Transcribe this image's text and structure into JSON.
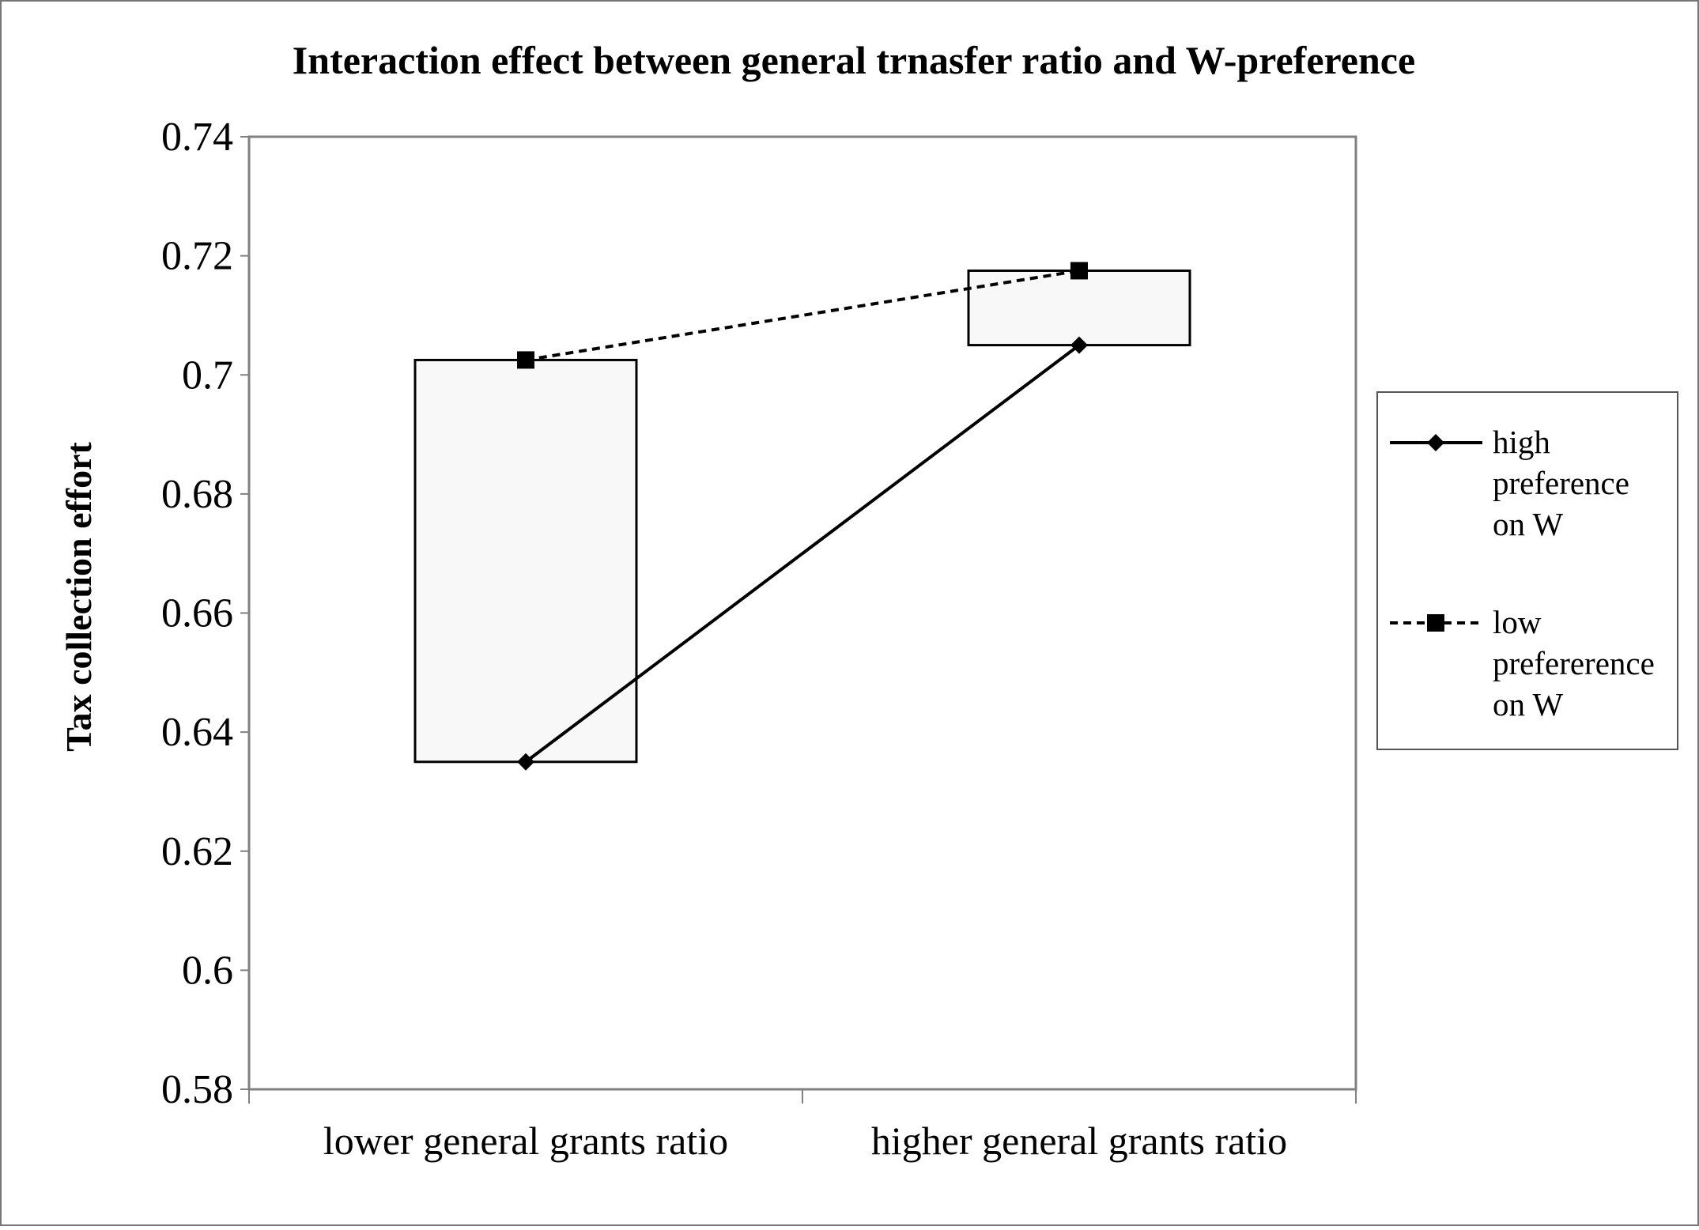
{
  "chart_data": {
    "type": "line",
    "title": "Interaction effect between general trnasfer ratio and W-preference",
    "ylabel": "Tax collection effort",
    "xlabel": "",
    "categories": [
      "lower general grants ratio",
      "higher general grants ratio"
    ],
    "ylim": [
      0.58,
      0.74
    ],
    "yticks": [
      "0.74",
      "0.72",
      "0.7",
      "0.68",
      "0.66",
      "0.64",
      "0.62",
      "0.6",
      "0.58"
    ],
    "series": [
      {
        "name_lines": [
          "high",
          "preference",
          "on W"
        ],
        "values": [
          0.635,
          0.705
        ],
        "line_style": "solid",
        "marker": "diamond",
        "color": "#000000"
      },
      {
        "name_lines": [
          "low",
          "prefererence",
          "on W"
        ],
        "values": [
          0.7025,
          0.7175
        ],
        "line_style": "dashed",
        "marker": "square",
        "color": "#000000"
      }
    ],
    "range_boxes": true,
    "box_fill": "#f8f8f8",
    "grid": false,
    "legend_position": "right"
  }
}
